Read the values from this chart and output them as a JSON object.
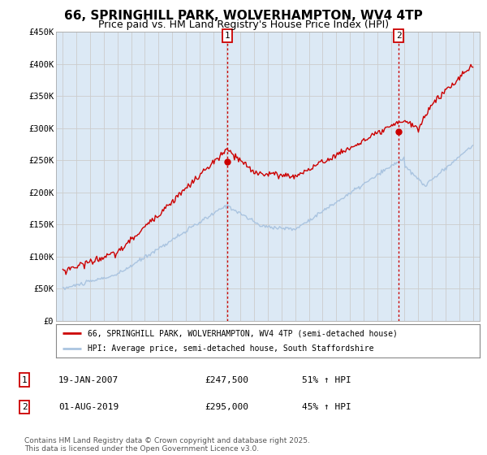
{
  "title": "66, SPRINGHILL PARK, WOLVERHAMPTON, WV4 4TP",
  "subtitle": "Price paid vs. HM Land Registry's House Price Index (HPI)",
  "title_fontsize": 11,
  "subtitle_fontsize": 9,
  "xlim": [
    1994.5,
    2025.5
  ],
  "ylim": [
    0,
    450000
  ],
  "yticks": [
    0,
    50000,
    100000,
    150000,
    200000,
    250000,
    300000,
    350000,
    400000,
    450000
  ],
  "ytick_labels": [
    "£0",
    "£50K",
    "£100K",
    "£150K",
    "£200K",
    "£250K",
    "£300K",
    "£350K",
    "£400K",
    "£450K"
  ],
  "xticks": [
    1995,
    1996,
    1997,
    1998,
    1999,
    2000,
    2001,
    2002,
    2003,
    2004,
    2005,
    2006,
    2007,
    2008,
    2009,
    2010,
    2011,
    2012,
    2013,
    2014,
    2015,
    2016,
    2017,
    2018,
    2019,
    2020,
    2021,
    2022,
    2023,
    2024,
    2025
  ],
  "grid_color": "#cccccc",
  "plot_bg_color": "#dce9f5",
  "hpi_line_color": "#aac4e0",
  "price_line_color": "#cc0000",
  "marker1_x": 2007.05,
  "marker1_y": 247500,
  "marker2_x": 2019.58,
  "marker2_y": 295000,
  "vline1_x": 2007.05,
  "vline2_x": 2019.58,
  "vline_color": "#cc0000",
  "legend_label_price": "66, SPRINGHILL PARK, WOLVERHAMPTON, WV4 4TP (semi-detached house)",
  "legend_label_hpi": "HPI: Average price, semi-detached house, South Staffordshire",
  "annotation1_date": "19-JAN-2007",
  "annotation1_price": "£247,500",
  "annotation1_pct": "51% ↑ HPI",
  "annotation2_date": "01-AUG-2019",
  "annotation2_price": "£295,000",
  "annotation2_pct": "45% ↑ HPI",
  "footer": "Contains HM Land Registry data © Crown copyright and database right 2025.\nThis data is licensed under the Open Government Licence v3.0.",
  "footer_fontsize": 6.5
}
